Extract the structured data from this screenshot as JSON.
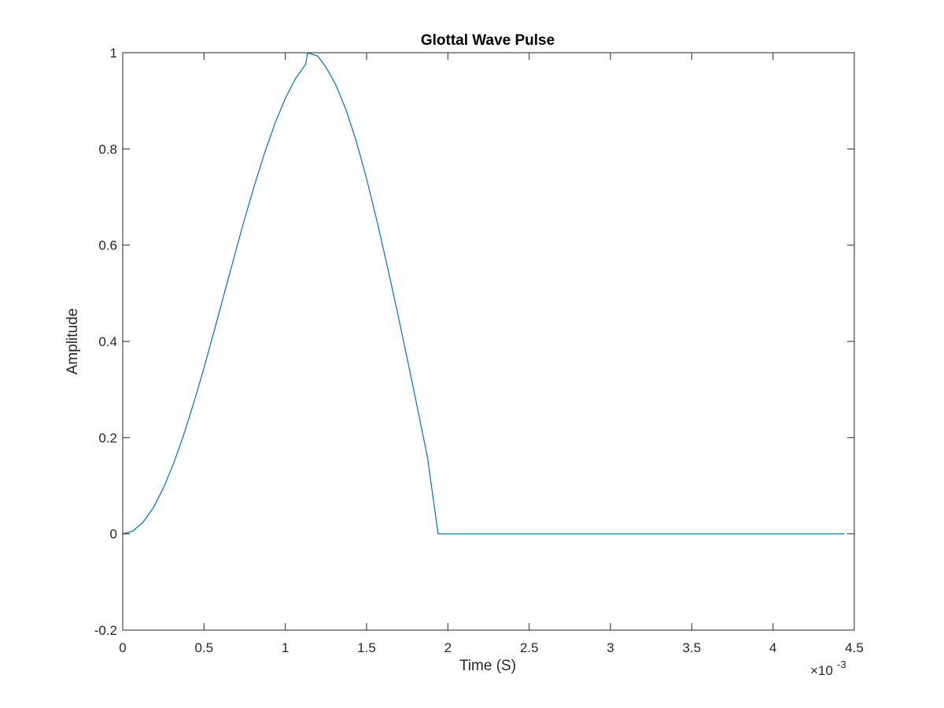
{
  "chart_data": {
    "type": "line",
    "title": "Glottal Wave Pulse",
    "xlabel": "Time (S)",
    "ylabel": "Amplitude",
    "x_exponent_label": "×10",
    "x_exponent_power": "-3",
    "xlim": [
      0,
      4.5
    ],
    "ylim": [
      -0.2,
      1
    ],
    "x_ticks": [
      0,
      0.5,
      1,
      1.5,
      2,
      2.5,
      3,
      3.5,
      4,
      4.5
    ],
    "x_tick_labels": [
      "0",
      "0.5",
      "1",
      "1.5",
      "2",
      "2.5",
      "3",
      "3.5",
      "4",
      "4.5"
    ],
    "y_ticks": [
      -0.2,
      0,
      0.2,
      0.4,
      0.6,
      0.8,
      1
    ],
    "y_tick_labels": [
      "-0.2",
      "0",
      "0.2",
      "0.4",
      "0.6",
      "0.8",
      "1"
    ],
    "grid": false,
    "series": [
      {
        "color": "#0072bd",
        "x": [
          0,
          0.0625,
          0.125,
          0.1875,
          0.25,
          0.3125,
          0.375,
          0.4375,
          0.5,
          0.5625,
          0.625,
          0.6875,
          0.75,
          0.8125,
          0.875,
          0.9375,
          1.0,
          1.0625,
          1.125,
          1.1375,
          1.2,
          1.25,
          1.3125,
          1.375,
          1.4375,
          1.5,
          1.5625,
          1.625,
          1.6875,
          1.75,
          1.8125,
          1.875,
          1.94,
          2.5,
          3.0,
          3.5,
          4.0,
          4.44
        ],
        "y": [
          0,
          0.006,
          0.024,
          0.054,
          0.095,
          0.146,
          0.206,
          0.273,
          0.345,
          0.422,
          0.5,
          0.578,
          0.655,
          0.727,
          0.794,
          0.854,
          0.905,
          0.946,
          0.976,
          1.0,
          0.993,
          0.97,
          0.932,
          0.88,
          0.815,
          0.738,
          0.652,
          0.56,
          0.464,
          0.364,
          0.262,
          0.158,
          0,
          0,
          0,
          0,
          0,
          0
        ]
      }
    ]
  }
}
